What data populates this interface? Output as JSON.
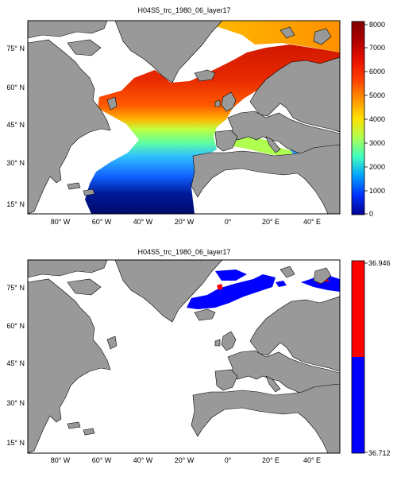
{
  "panels": [
    {
      "title": "H04S5_trc_1980_06_layer17",
      "lat_labels": [
        "75° N",
        "60° N",
        "45° N",
        "30° N",
        "15° N"
      ],
      "lon_labels": [
        "80° W",
        "60° W",
        "40° W",
        "20° W",
        "0°",
        "20° E",
        "40° E"
      ],
      "colorbar_ticks": [
        "8000",
        "7000",
        "6000",
        "5000",
        "4000",
        "3000",
        "2000",
        "1000",
        "0"
      ],
      "colorbar_range": [
        0,
        8000
      ],
      "colormap": "jet"
    },
    {
      "title": "H04S5_trc_1980_06_layer17",
      "lat_labels": [
        "75° N",
        "60° N",
        "45° N",
        "30° N",
        "15° N"
      ],
      "lon_labels": [
        "80° W",
        "60° W",
        "40° W",
        "20° W",
        "0°",
        "20° E",
        "40° E"
      ],
      "colorbar_ticks": [
        "36.946",
        "36.712"
      ],
      "colorbar_range": [
        36.712,
        36.946
      ],
      "colors": {
        "high": "#ff0000",
        "low": "#0000ff"
      }
    }
  ],
  "colors": {
    "land": "#999999",
    "nodata": "#ffffff",
    "frame": "#000000"
  }
}
